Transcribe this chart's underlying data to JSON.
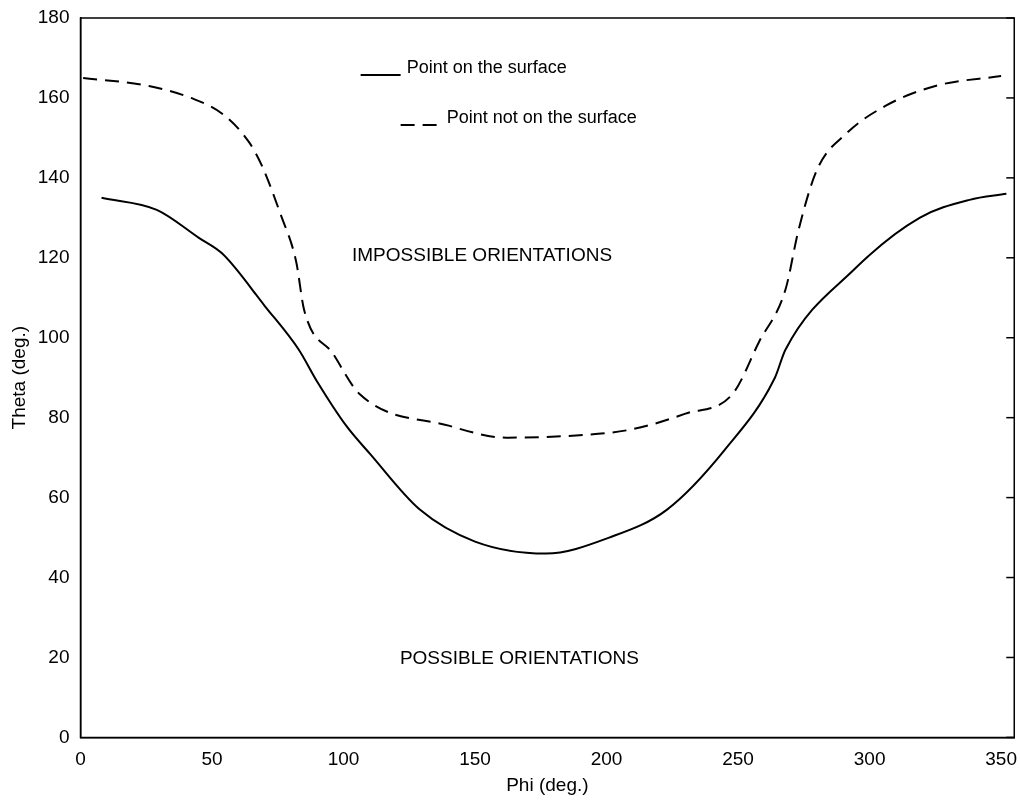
{
  "chart_data": {
    "type": "line",
    "xlabel": "Phi (deg.)",
    "ylabel": "Theta (deg.)",
    "xlim": [
      0,
      355
    ],
    "xticks": [
      0,
      50,
      100,
      150,
      200,
      250,
      300,
      350
    ],
    "ylim": [
      0,
      180
    ],
    "yticks": [
      0,
      20,
      40,
      60,
      80,
      100,
      120,
      140,
      160,
      180
    ],
    "grid": false,
    "legend": "top",
    "marker": "none",
    "series": [
      {
        "name": "Point on the surface",
        "color": "#000000",
        "line_style": "solid",
        "x": [
          8,
          29,
          45,
          54,
          70,
          83,
          90,
          101,
          110,
          129,
          150,
          177,
          201,
          223,
          245,
          264,
          268,
          294,
          319,
          338,
          352
        ],
        "values": [
          135,
          132,
          125,
          121,
          108,
          97,
          89,
          78,
          71,
          57,
          49,
          46,
          50,
          57,
          72,
          90,
          97,
          117,
          130,
          134.5,
          136
        ]
      },
      {
        "name": "Point not on the surface",
        "color": "#000000",
        "line_style": "dashed",
        "x": [
          1,
          26,
          42,
          54,
          64,
          69,
          76,
          82,
          85,
          96,
          106,
          140,
          162,
          187,
          209,
          230,
          248,
          258,
          268,
          273,
          280,
          291,
          306,
          325,
          350
        ],
        "values": [
          165,
          163,
          160,
          156,
          149,
          143,
          131,
          119,
          107,
          96,
          86,
          78,
          75,
          75.5,
          77,
          81,
          86,
          99,
          112,
          127,
          142,
          151,
          158,
          163,
          165.5
        ]
      }
    ],
    "annotations": [
      "IMPOSSIBLE ORIENTATIONS",
      "POSSIBLE ORIENTATIONS"
    ]
  }
}
